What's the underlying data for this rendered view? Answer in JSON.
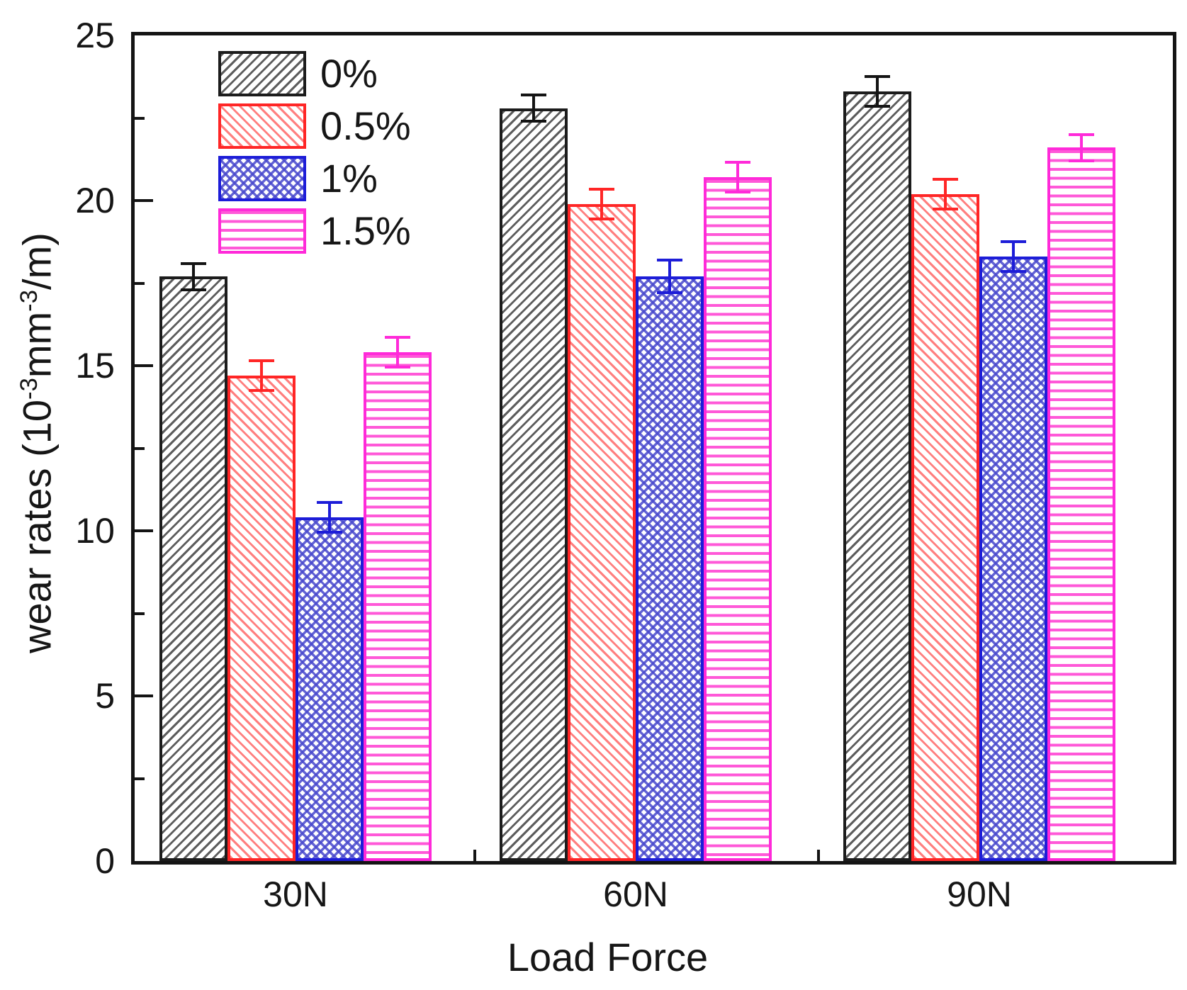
{
  "chart_data": {
    "type": "bar",
    "title": "",
    "xlabel": "Load Force",
    "ylabel": "wear rates (10⁻³mm⁻³/m)",
    "ylabel_parts": {
      "p1": "wear rates (10",
      "sup1": "-3",
      "p2": "mm",
      "sup2": "-3",
      "p3": "/m)"
    },
    "categories": [
      "30N",
      "60N",
      "90N"
    ],
    "series": [
      {
        "name": "0%",
        "color": "#1c1c1c",
        "hatch": "diagonal-up",
        "values": [
          17.7,
          22.8,
          23.3
        ],
        "errors": [
          0.4,
          0.4,
          0.45
        ]
      },
      {
        "name": "0.5%",
        "color": "#ff2626",
        "hatch": "diagonal-down",
        "values": [
          14.7,
          19.9,
          20.2
        ],
        "errors": [
          0.45,
          0.45,
          0.45
        ]
      },
      {
        "name": "1%",
        "color": "#1d1dd8",
        "hatch": "cross-diagonal",
        "values": [
          10.4,
          17.7,
          18.3
        ],
        "errors": [
          0.45,
          0.5,
          0.45
        ]
      },
      {
        "name": "1.5%",
        "color": "#ff2ad9",
        "hatch": "horizontal",
        "values": [
          15.4,
          20.7,
          21.6
        ],
        "errors": [
          0.45,
          0.45,
          0.4
        ]
      }
    ],
    "ylim": [
      0,
      25
    ],
    "yticks": [
      0,
      5,
      10,
      15,
      20,
      25
    ],
    "yticks_minor": [
      2.5,
      7.5,
      12.5,
      17.5,
      22.5
    ],
    "legend_position": "top-left-inside",
    "grid": "off",
    "error_bars": true
  }
}
